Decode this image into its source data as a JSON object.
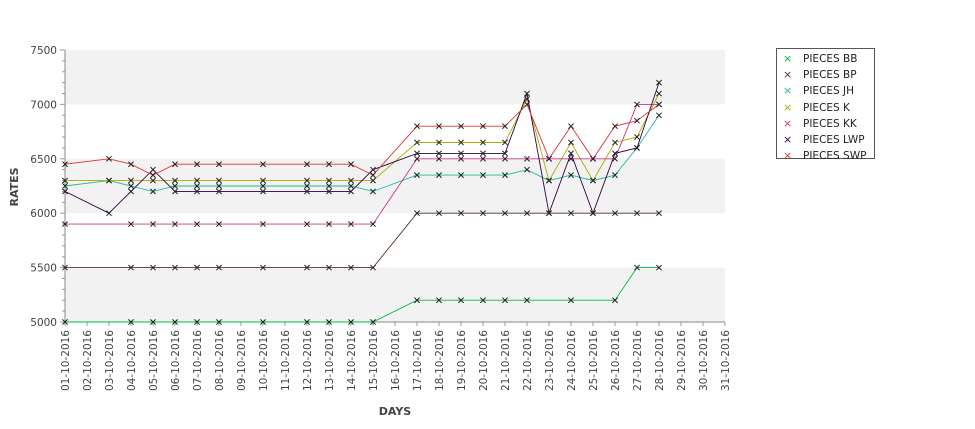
{
  "chart_data": {
    "type": "line",
    "title": "",
    "xlabel": "DAYS",
    "ylabel": "RATES",
    "ylim": [
      5000,
      7500
    ],
    "yticks": [
      5000,
      5500,
      6000,
      6500,
      7000,
      7500
    ],
    "grid": "alternating horizontal bands",
    "legend_position": "right",
    "categories": [
      "01-10-2016",
      "02-10-2016",
      "03-10-2016",
      "04-10-2016",
      "05-10-2016",
      "06-10-2016",
      "07-10-2016",
      "08-10-2016",
      "09-10-2016",
      "10-10-2016",
      "11-10-2016",
      "12-10-2016",
      "13-10-2016",
      "14-10-2016",
      "15-10-2016",
      "16-10-2016",
      "17-10-2016",
      "18-10-2016",
      "19-10-2016",
      "20-10-2016",
      "21-10-2016",
      "22-10-2016",
      "23-10-2016",
      "24-10-2016",
      "25-10-2016",
      "26-10-2016",
      "27-10-2016",
      "28-10-2016",
      "29-10-2016",
      "30-10-2016",
      "31-10-2016"
    ],
    "series": [
      {
        "name": "PIECES BB",
        "color": "#00bb44",
        "values": [
          5000,
          null,
          null,
          5000,
          5000,
          5000,
          5000,
          5000,
          null,
          5000,
          null,
          5000,
          5000,
          5000,
          5000,
          null,
          5200,
          5200,
          5200,
          5200,
          5200,
          5200,
          null,
          5200,
          null,
          5200,
          5500,
          5500,
          null,
          null,
          null
        ]
      },
      {
        "name": "PIECES BP",
        "color": "#553322",
        "values": [
          5500,
          null,
          null,
          5500,
          5500,
          5500,
          5500,
          5500,
          null,
          5500,
          null,
          5500,
          5500,
          5500,
          5500,
          null,
          6000,
          6000,
          6000,
          6000,
          6000,
          6000,
          6000,
          6000,
          6000,
          6000,
          6000,
          6000,
          null,
          null,
          null
        ]
      },
      {
        "name": "PIECES JH",
        "color": "#22bb99",
        "values": [
          6250,
          null,
          6300,
          6250,
          6200,
          6250,
          6250,
          6250,
          null,
          6250,
          null,
          6250,
          6250,
          6250,
          6200,
          null,
          6350,
          6350,
          6350,
          6350,
          6350,
          6400,
          6300,
          6350,
          6300,
          6350,
          6600,
          6900,
          null,
          null,
          null
        ]
      },
      {
        "name": "PIECES K",
        "color": "#aaaa00",
        "values": [
          6300,
          null,
          6300,
          6300,
          6300,
          6300,
          6300,
          6300,
          null,
          6300,
          null,
          6300,
          6300,
          6300,
          6300,
          null,
          6650,
          6650,
          6650,
          6650,
          6650,
          7050,
          6300,
          6650,
          6300,
          6650,
          6700,
          7100,
          null,
          null,
          null
        ]
      },
      {
        "name": "PIECES KK",
        "color": "#cc3388",
        "values": [
          5900,
          null,
          null,
          5900,
          5900,
          5900,
          5900,
          5900,
          null,
          5900,
          null,
          5900,
          5900,
          5900,
          5900,
          null,
          6500,
          6500,
          6500,
          6500,
          6500,
          6500,
          6500,
          6500,
          6500,
          6500,
          7000,
          7000,
          null,
          null,
          null
        ]
      },
      {
        "name": "PIECES LWP",
        "color": "#330044",
        "values": [
          6200,
          null,
          6000,
          6200,
          6400,
          6200,
          6200,
          6200,
          null,
          6200,
          null,
          6200,
          6200,
          6200,
          6400,
          null,
          6550,
          6550,
          6550,
          6550,
          6550,
          7100,
          6000,
          6550,
          6000,
          6550,
          6600,
          7200,
          null,
          null,
          null
        ]
      },
      {
        "name": "PIECES SWP",
        "color": "#dd3333",
        "values": [
          6450,
          null,
          6500,
          6450,
          6350,
          6450,
          6450,
          6450,
          null,
          6450,
          null,
          6450,
          6450,
          6450,
          6350,
          null,
          6800,
          6800,
          6800,
          6800,
          6800,
          7000,
          6500,
          6800,
          6500,
          6800,
          6850,
          7000,
          null,
          null,
          null
        ]
      }
    ]
  }
}
